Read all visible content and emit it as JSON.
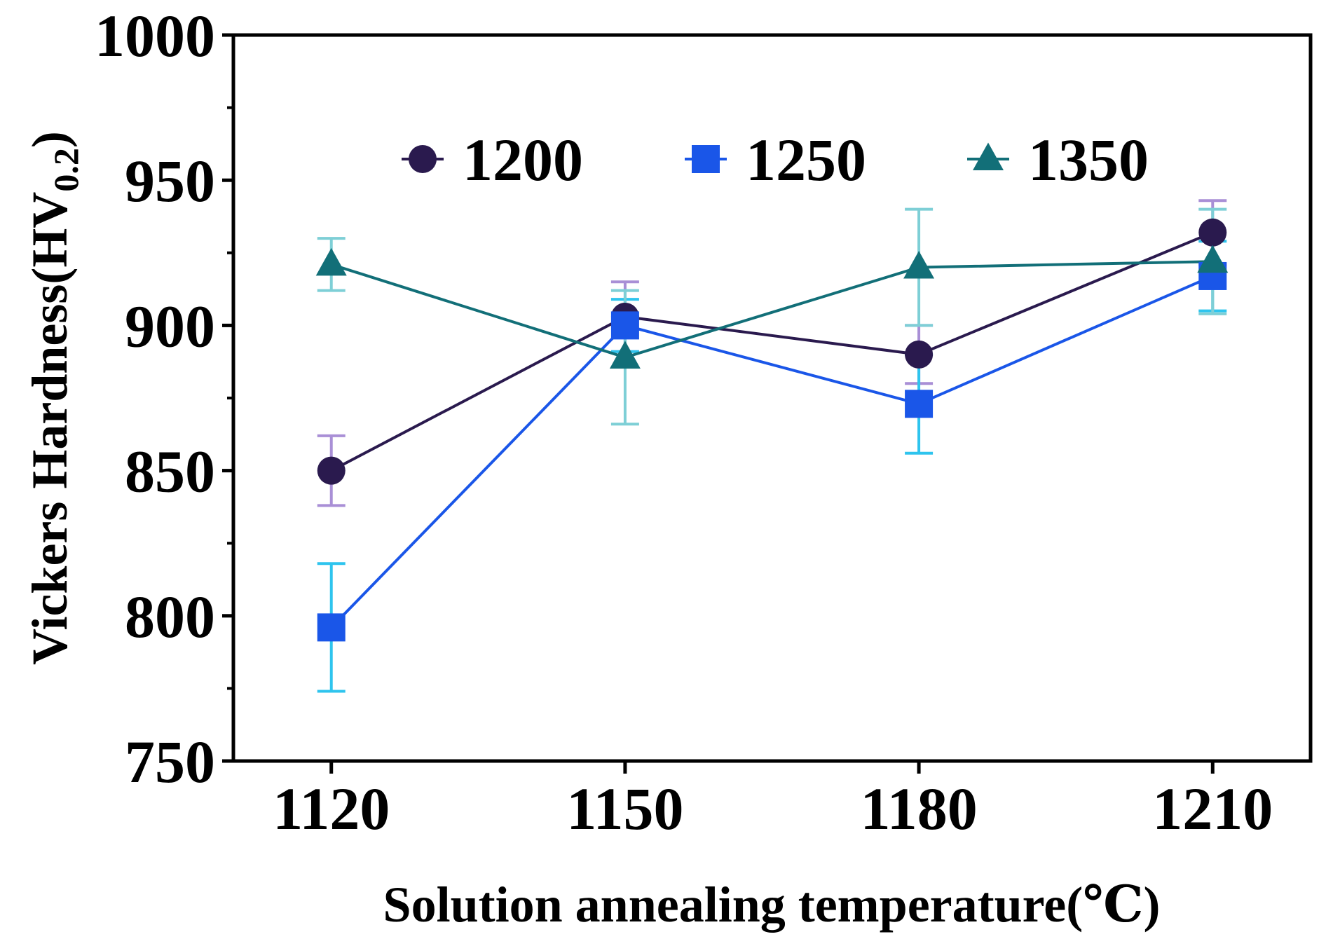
{
  "chart_data": {
    "type": "line",
    "title": "",
    "xlabel": "Solution annealing temperature(℃)",
    "ylabel_main": "Vickers Hardness(HV",
    "ylabel_sub": "0.2",
    "ylabel_close": ")",
    "categories": [
      "1120",
      "1150",
      "1180",
      "1210"
    ],
    "x": [
      1120,
      1150,
      1180,
      1210
    ],
    "xlim": [
      1110,
      1220
    ],
    "ylim": [
      750,
      1000
    ],
    "yticks": [
      750,
      800,
      850,
      900,
      950,
      1000
    ],
    "ytick_labels": [
      "750",
      "800",
      "850",
      "900",
      "950",
      "1000"
    ],
    "grid": false,
    "legend_position": "top-center",
    "series": [
      {
        "name": "1200",
        "marker": "circle",
        "color": "#2a1a4e",
        "error_color": "#a98fd6",
        "values": [
          850,
          903,
          890,
          932
        ],
        "errors": [
          12,
          12,
          10,
          11
        ]
      },
      {
        "name": "1250",
        "marker": "square",
        "color": "#1a56e8",
        "error_color": "#2ec4ee",
        "values": [
          796,
          900,
          873,
          917
        ],
        "errors": [
          22,
          9,
          17,
          12
        ]
      },
      {
        "name": "1350",
        "marker": "triangle",
        "color": "#126f78",
        "error_color": "#7ecfd6",
        "values": [
          921,
          889,
          920,
          922
        ],
        "errors": [
          9,
          23,
          20,
          18
        ]
      }
    ]
  }
}
